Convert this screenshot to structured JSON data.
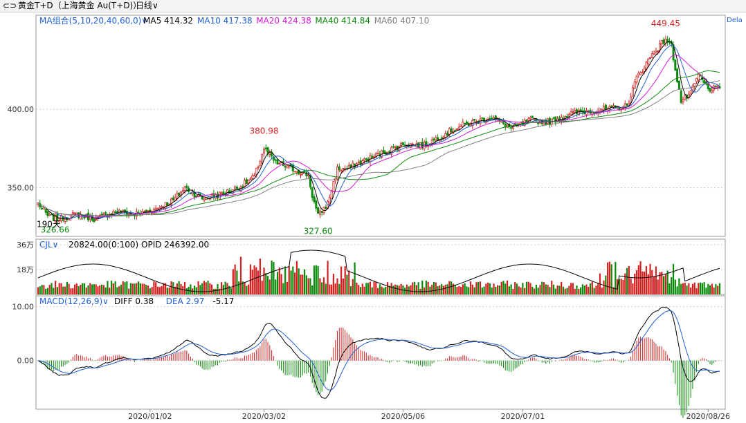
{
  "toolbar": {
    "link_icon": "link-icon",
    "instrument": "黄金T+D（上海黄金 Au(T+D)）",
    "period": "日线",
    "right_label": "Dela"
  },
  "colors": {
    "up": "#d62020",
    "down": "#0a8a0a",
    "ma5": "#000000",
    "ma10": "#1f5fd6",
    "ma20": "#d41ad4",
    "ma40": "#0a8a0a",
    "ma60": "#808080",
    "grid": "#c8c8c8",
    "axis_text": "#333333"
  },
  "chart_data": [
    {
      "type": "candlestick",
      "legend": {
        "group_label": "MA组合(5,10,20,40,60,0)",
        "items": [
          {
            "label": "MA5 414.32",
            "color": "#000000"
          },
          {
            "label": "MA10 417.38",
            "color": "#1f5fd6"
          },
          {
            "label": "MA20 424.38",
            "color": "#d41ad4"
          },
          {
            "label": "MA40 414.84",
            "color": "#0a8a0a"
          },
          {
            "label": "MA60 407.10",
            "color": "#808080"
          }
        ]
      },
      "y_ticks": [
        "400.00",
        "350.00"
      ],
      "y_tick_values": [
        400,
        350
      ],
      "ylim": [
        319,
        460
      ],
      "annotations": [
        {
          "text": "380.98",
          "value": 380.98,
          "color": "#d62020"
        },
        {
          "text": "327.60",
          "value": 327.6,
          "color": "#0a8a0a"
        },
        {
          "text": "449.45",
          "value": 449.45,
          "color": "#d62020"
        },
        {
          "text": "326.66",
          "value": 326.66,
          "color": "#0a8a0a"
        }
      ],
      "overlay_label": "190天",
      "close_anchors": [
        [
          0,
          340
        ],
        [
          5,
          332
        ],
        [
          10,
          330
        ],
        [
          20,
          333
        ],
        [
          30,
          330
        ],
        [
          40,
          335
        ],
        [
          50,
          333
        ],
        [
          60,
          336
        ],
        [
          70,
          342
        ],
        [
          76,
          350
        ],
        [
          85,
          343
        ],
        [
          95,
          346
        ],
        [
          105,
          351
        ],
        [
          112,
          357
        ],
        [
          117,
          375
        ],
        [
          123,
          366
        ],
        [
          132,
          362
        ],
        [
          140,
          358
        ],
        [
          142,
          345
        ],
        [
          145,
          332
        ],
        [
          150,
          340
        ],
        [
          155,
          362
        ],
        [
          160,
          362
        ],
        [
          170,
          368
        ],
        [
          180,
          373
        ],
        [
          190,
          378
        ],
        [
          200,
          377
        ],
        [
          210,
          384
        ],
        [
          220,
          390
        ],
        [
          235,
          395
        ],
        [
          245,
          388
        ],
        [
          255,
          393
        ],
        [
          265,
          392
        ],
        [
          275,
          397
        ],
        [
          285,
          399
        ],
        [
          295,
          400
        ],
        [
          305,
          402
        ],
        [
          310,
          420
        ],
        [
          318,
          435
        ],
        [
          325,
          445
        ],
        [
          328,
          440
        ],
        [
          333,
          405
        ],
        [
          338,
          410
        ],
        [
          342,
          422
        ],
        [
          347,
          413
        ],
        [
          353,
          413
        ]
      ],
      "sma_lengths": [
        5,
        10,
        20,
        40,
        60
      ]
    },
    {
      "type": "bar",
      "legend": {
        "group_label": "CJL",
        "items": [
          {
            "label": "20824.00(0:100)  OPID 246392.00",
            "color": "#000000"
          }
        ]
      },
      "y_ticks": [
        "36万",
        "18万"
      ],
      "y_tick_values": [
        36,
        18
      ],
      "ylim": [
        0,
        40
      ],
      "units": "万"
    },
    {
      "type": "macd",
      "legend": {
        "group_label": "MACD(12,26,9)",
        "items": [
          {
            "label": "DIFF 0.38",
            "color": "#000000"
          },
          {
            "label": "DEA 2.97",
            "color": "#1f5fd6"
          },
          {
            "label": "-5.17",
            "color": "#000000"
          }
        ]
      },
      "y_ticks": [
        "10.00",
        "0.00"
      ],
      "y_tick_values": [
        10,
        0
      ],
      "ylim": [
        -9,
        12
      ]
    }
  ],
  "x_axis": {
    "labels": [
      "2020/01/02",
      "2020/03/02",
      "2020/05/06",
      "2020/07/01",
      "2020/08/26"
    ],
    "label_index": [
      58,
      117,
      189,
      251,
      347
    ]
  }
}
